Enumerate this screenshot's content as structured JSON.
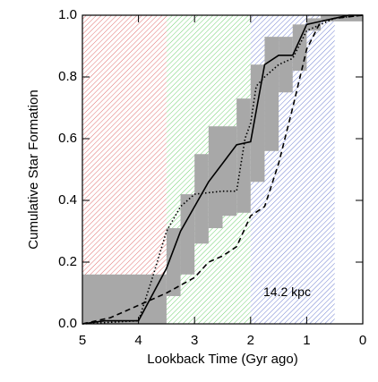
{
  "chart_data": {
    "type": "line",
    "xlabel": "Lookback Time (Gyr ago)",
    "ylabel": "Cumulative Star Formation",
    "annotation": "14.2 kpc",
    "annotation_at": [
      1.35,
      0.1
    ],
    "xlim": [
      5,
      0
    ],
    "ylim": [
      0,
      1
    ],
    "xticks": [
      5,
      4,
      3,
      2,
      1,
      0
    ],
    "yticks": [
      {
        "value": 0,
        "label": "0.0"
      },
      {
        "value": 0.2,
        "label": "0.2"
      },
      {
        "value": 0.4,
        "label": "0.4"
      },
      {
        "value": 0.6,
        "label": "0.6"
      },
      {
        "value": 0.8,
        "label": "0.8"
      },
      {
        "value": 1,
        "label": "1.0"
      }
    ],
    "regions": [
      {
        "xlim": [
          5,
          3.5
        ],
        "color": "#e07070"
      },
      {
        "xlim": [
          3.5,
          2
        ],
        "color": "#70d070"
      },
      {
        "xlim": [
          2,
          0.5
        ],
        "color": "#7080d0"
      }
    ],
    "band": {
      "color": "#a8a8a8",
      "bins": [
        5,
        3.5,
        3.25,
        3.0,
        2.75,
        2.5,
        2.25,
        2.0,
        1.75,
        1.5,
        1.25,
        1.0,
        0.75,
        0
      ],
      "lower": [
        0,
        0.09,
        0.16,
        0.26,
        0.31,
        0.35,
        0.36,
        0.46,
        0.56,
        0.75,
        0.82,
        0.95,
        0.98
      ],
      "upper": [
        0.16,
        0.31,
        0.42,
        0.55,
        0.64,
        0.64,
        0.73,
        0.84,
        0.93,
        0.93,
        0.97,
        0.99,
        1.0
      ]
    },
    "series": [
      {
        "style": "solid",
        "color": "#000000",
        "x": [
          5,
          4.6,
          4.0,
          3.5,
          3.25,
          3.0,
          2.75,
          2.5,
          2.25,
          2.0,
          1.75,
          1.5,
          1.25,
          1.1,
          1.0,
          0.75,
          0.5,
          0.25,
          0
        ],
        "values": [
          0,
          0.01,
          0.01,
          0.18,
          0.3,
          0.38,
          0.46,
          0.52,
          0.58,
          0.59,
          0.84,
          0.87,
          0.87,
          0.93,
          0.97,
          0.98,
          0.99,
          1.0,
          1.0
        ]
      },
      {
        "style": "dotted",
        "color": "#000000",
        "x": [
          5,
          4.0,
          3.75,
          3.5,
          3.25,
          3.0,
          2.5,
          2.25,
          2.1,
          2.0,
          1.9,
          1.75,
          1.5,
          1.25,
          1.0,
          0.5,
          0
        ],
        "values": [
          0,
          0.01,
          0.15,
          0.3,
          0.38,
          0.42,
          0.43,
          0.43,
          0.6,
          0.65,
          0.77,
          0.8,
          0.84,
          0.86,
          0.95,
          0.99,
          1.0
        ]
      },
      {
        "style": "dashed",
        "color": "#000000",
        "x": [
          5,
          4.5,
          4.0,
          3.5,
          3.0,
          2.75,
          2.5,
          2.25,
          2.0,
          1.75,
          1.5,
          1.25,
          1.0,
          0.75,
          0.5,
          0
        ],
        "values": [
          0,
          0.02,
          0.06,
          0.1,
          0.15,
          0.2,
          0.22,
          0.25,
          0.35,
          0.38,
          0.52,
          0.7,
          0.89,
          0.98,
          0.99,
          1.0
        ]
      }
    ]
  }
}
